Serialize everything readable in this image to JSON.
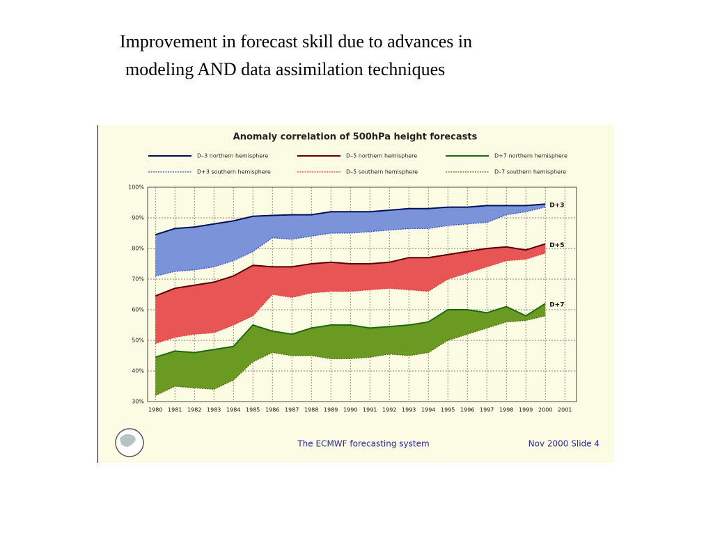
{
  "heading": [
    "Improvement in forecast skill due to advances in",
    "modeling AND data assimilation techniques"
  ],
  "chart_data": {
    "type": "band-line",
    "title": "Anomaly correlation of 500hPa height forecasts",
    "x": [
      1980,
      1981,
      1982,
      1983,
      1984,
      1985,
      1986,
      1987,
      1988,
      1989,
      1990,
      1991,
      1992,
      1993,
      1994,
      1995,
      1996,
      1997,
      1998,
      1999,
      2000
    ],
    "series": [
      {
        "name": "D–3 northern hemisphere",
        "color": "#00105a",
        "style": "solid",
        "band_color": "#7b93d8",
        "values": [
          84.5,
          86.5,
          87,
          88,
          89,
          90.5,
          90.8,
          91,
          91,
          92,
          92,
          92,
          92.5,
          93,
          93,
          93.5,
          93.5,
          94,
          94,
          94,
          94.5
        ]
      },
      {
        "name": "D–5 northern hemisphere",
        "color": "#5a0000",
        "style": "solid",
        "band_color": "#e85555",
        "values": [
          64.5,
          67,
          68,
          69,
          71,
          74.5,
          74,
          74,
          75,
          75.5,
          75,
          75,
          75.5,
          77,
          77,
          78,
          79,
          80,
          80.5,
          79.5,
          81.5
        ]
      },
      {
        "name": "D+7 northern hemisphere",
        "color": "#1a6a10",
        "style": "solid",
        "band_color": "#6b9a22",
        "values": [
          44.5,
          46.5,
          46,
          47,
          48,
          55,
          53,
          52,
          54,
          55,
          55,
          54,
          54.5,
          55,
          56,
          60,
          60,
          59,
          61,
          58,
          62
        ]
      },
      {
        "name": "D+3 southern hemisphere",
        "color": "#3050e0",
        "style": "dotted",
        "values": [
          71,
          72.5,
          73,
          74,
          76,
          79,
          83.5,
          83,
          84,
          85,
          85,
          85.5,
          86,
          86.5,
          86.5,
          87.5,
          88,
          88.5,
          91,
          92,
          93.5
        ]
      },
      {
        "name": "D–5 southern hemisphere",
        "color": "#ff3030",
        "style": "dotted",
        "values": [
          49,
          51,
          52,
          52.5,
          55,
          58,
          65,
          64,
          65.5,
          66,
          66,
          66.5,
          67,
          66.5,
          66,
          70,
          72,
          74,
          76,
          76.5,
          78.5
        ]
      },
      {
        "name": "D–7 southern hemisphere",
        "color": "#556b10",
        "style": "dotted",
        "values": [
          32,
          35,
          34.5,
          34,
          37,
          43,
          46,
          45,
          45,
          44,
          44,
          44.5,
          45.5,
          45,
          46,
          50,
          52,
          54,
          56,
          56.5,
          58
        ]
      }
    ],
    "annotations": [
      "D+3",
      "D+5",
      "D+7"
    ],
    "xlim": [
      1979.6,
      2001.6
    ],
    "xticks": [
      1980,
      1981,
      1982,
      1983,
      1984,
      1985,
      1986,
      1987,
      1988,
      1989,
      1990,
      1991,
      1992,
      1993,
      1994,
      1995,
      1996,
      1997,
      1998,
      1999,
      2000,
      2001
    ],
    "ylim": [
      30,
      100
    ],
    "yticks": [
      {
        "value": 30,
        "label": "30%"
      },
      {
        "value": 40,
        "label": "40%"
      },
      {
        "value": 50,
        "label": "50%"
      },
      {
        "value": 60,
        "label": "60%"
      },
      {
        "value": 70,
        "label": "70%"
      },
      {
        "value": 80,
        "label": "80%"
      },
      {
        "value": 90,
        "label": "90%"
      },
      {
        "value": 100,
        "label": "100%"
      }
    ],
    "grid": true
  },
  "footer": {
    "center": "The ECMWF forecasting system",
    "right": "Nov 2000  Slide 4"
  }
}
